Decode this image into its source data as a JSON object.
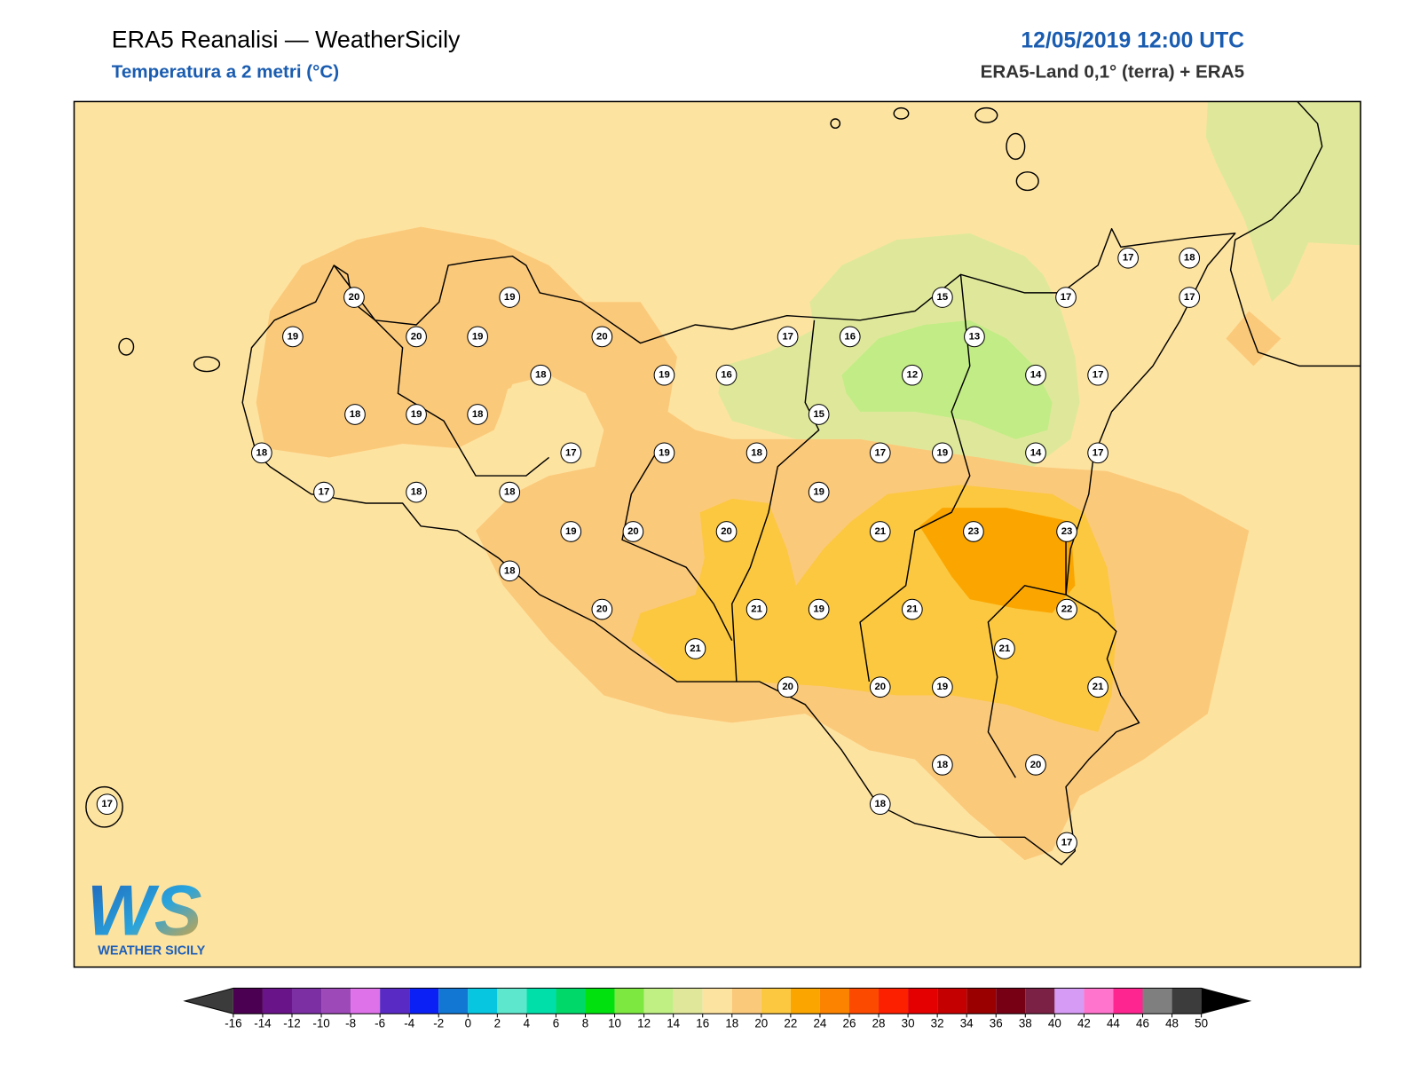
{
  "header": {
    "title": "ERA5 Reanalisi — WeatherSicily",
    "subtitle": "Temperatura a 2 metri (°C)",
    "datetime": "12/05/2019 12:00 UTC",
    "source": "ERA5-Land 0,1° (terra) + ERA5"
  },
  "stations": [
    20,
    19,
    19,
    20,
    19,
    20,
    18,
    19,
    16,
    17,
    16,
    15,
    17,
    17,
    18,
    17,
    13,
    12,
    14,
    17,
    15,
    18,
    19,
    18,
    18,
    17,
    19,
    18,
    17,
    19,
    14,
    17,
    17,
    18,
    18,
    19,
    19,
    20,
    20,
    21,
    23,
    23,
    18,
    20,
    21,
    19,
    21,
    22,
    21,
    21,
    20,
    20,
    19,
    21,
    18,
    20,
    18,
    17,
    17
  ],
  "colorbar": {
    "ticks": [
      -16,
      -14,
      -12,
      -10,
      -8,
      -6,
      -4,
      -2,
      0,
      2,
      4,
      6,
      8,
      10,
      12,
      14,
      16,
      18,
      20,
      22,
      24,
      26,
      28,
      30,
      32,
      34,
      36,
      38,
      40,
      42,
      44,
      46,
      48,
      50
    ],
    "colors": [
      "#4b0052",
      "#6a1489",
      "#7b2fa2",
      "#9e49b8",
      "#de72e8",
      "#5a2bc4",
      "#0b20f5",
      "#1177d3",
      "#06c6e0",
      "#5de8cd",
      "#00dfaa",
      "#00d96a",
      "#00e10e",
      "#7de840",
      "#c0ef84",
      "#e0e69a",
      "#fde3a0",
      "#fbc97a",
      "#fcc840",
      "#fba600",
      "#fb8300",
      "#fc4a00",
      "#fc1f00",
      "#e40000",
      "#c50000",
      "#9a0000",
      "#780015",
      "#7b2146",
      "#d59bf5",
      "#ff74cc",
      "#ff2590",
      "#7f7f7f",
      "#3c3c3c"
    ],
    "under": "#3b3b3b",
    "over": "#000000"
  },
  "logo": {
    "mark": "WS",
    "text": "WEATHER SICILY"
  }
}
